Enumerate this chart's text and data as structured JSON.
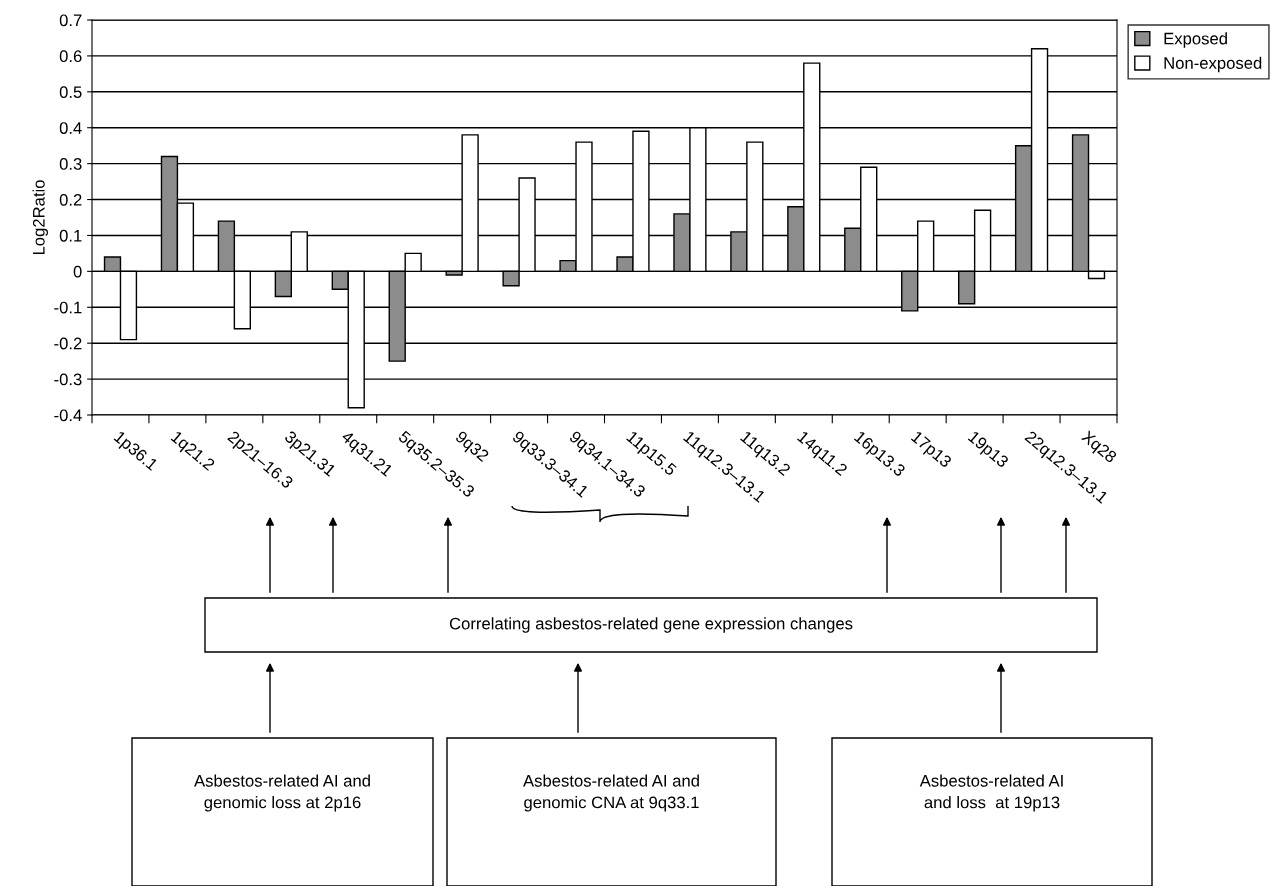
{
  "chart_data": {
    "type": "bar",
    "ylabel": "Log2Ratio",
    "categories": [
      "1p36.1",
      "1q21.2",
      "2p21–16.3",
      "3p21.31",
      "4q31.21",
      "5q35.2–35.3",
      "9q32",
      "9q33.3–34.1",
      "9q34.1–34.3",
      "11p15.5",
      "11q12.3–13.1",
      "11q13.2",
      "14q11.2",
      "16p13.3",
      "17p13",
      "19p13",
      "22q12.3–13.1",
      "Xq28"
    ],
    "series": [
      {
        "name": "Exposed",
        "color": "#8c8c8c",
        "values": [
          0.04,
          0.32,
          0.14,
          -0.07,
          -0.05,
          -0.25,
          -0.01,
          -0.04,
          0.03,
          0.04,
          0.16,
          0.11,
          0.18,
          0.12,
          -0.11,
          -0.09,
          0.35,
          0.38
        ]
      },
      {
        "name": "Non-exposed",
        "color": "#ffffff",
        "values": [
          -0.19,
          0.19,
          -0.16,
          0.11,
          -0.38,
          0.05,
          0.38,
          0.26,
          0.36,
          0.39,
          0.4,
          0.36,
          0.58,
          0.29,
          0.14,
          0.17,
          0.62,
          -0.02
        ]
      }
    ],
    "ylim": [
      -0.4,
      0.7
    ],
    "yticks": [
      -0.4,
      -0.3,
      -0.2,
      -0.1,
      0,
      0.1,
      0.2,
      0.3,
      0.4,
      0.5,
      0.6,
      0.7
    ],
    "grid": "y",
    "legend": "top right",
    "annotations": [
      "Correlating asbestos-related gene expression changes",
      "Asbestos-related AI and\ngenomic loss at 2p16",
      "Asbestos-related AI and\ngenomic CNA at 9q33.1",
      "Asbestos-related AI\nand loss  at 19p13"
    ]
  }
}
